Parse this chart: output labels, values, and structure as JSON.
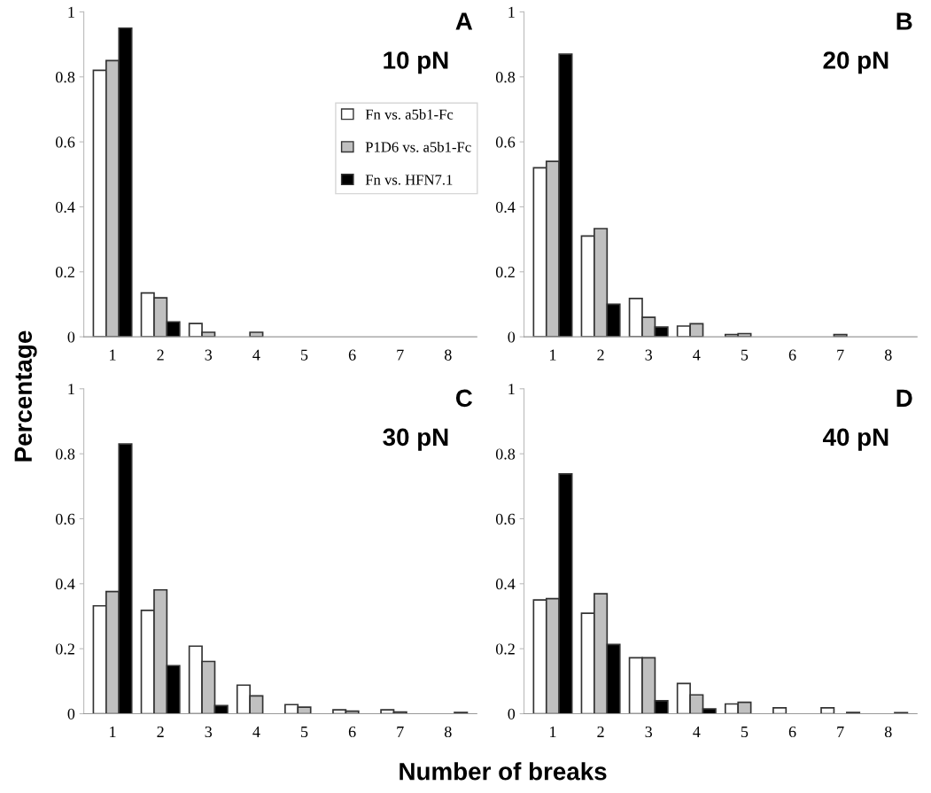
{
  "chart_data": [
    {
      "type": "bar",
      "title": "A",
      "annotations": [
        "10 pN"
      ],
      "ylabel": "Percentage",
      "categories": [
        "1",
        "2",
        "3",
        "4",
        "5",
        "6",
        "7",
        "8"
      ],
      "ylim": [
        0,
        1
      ],
      "yticks": [
        0,
        0.2,
        0.4,
        0.6,
        0.8,
        1
      ],
      "grid": false,
      "legend": "top right",
      "series": [
        {
          "name": "Fn vs. a5b1-Fc",
          "color": "#ffffff",
          "values": [
            0.82,
            0.135,
            0.041,
            0,
            0,
            0,
            0,
            0
          ]
        },
        {
          "name": "P1D6 vs. a5b1-Fc",
          "color": "#c0c0c0",
          "values": [
            0.85,
            0.12,
            0.014,
            0.014,
            0,
            0,
            0,
            0
          ]
        },
        {
          "name": "Fn vs. HFN7.1",
          "color": "#000000",
          "values": [
            0.95,
            0.046,
            0,
            0,
            0,
            0,
            0,
            0
          ]
        }
      ]
    },
    {
      "type": "bar",
      "title": "B",
      "annotations": [
        "20 pN"
      ],
      "categories": [
        "1",
        "2",
        "3",
        "4",
        "5",
        "6",
        "7",
        "8"
      ],
      "ylim": [
        0,
        1
      ],
      "yticks": [
        0,
        0.2,
        0.4,
        0.6,
        0.8,
        1
      ],
      "grid": false,
      "series": [
        {
          "color": "#ffffff",
          "values": [
            0.52,
            0.31,
            0.118,
            0.033,
            0.007,
            0,
            0,
            0
          ]
        },
        {
          "color": "#c0c0c0",
          "values": [
            0.54,
            0.333,
            0.06,
            0.04,
            0.01,
            0,
            0.007,
            0
          ]
        },
        {
          "color": "#000000",
          "values": [
            0.87,
            0.1,
            0.03,
            0,
            0,
            0,
            0,
            0
          ]
        }
      ]
    },
    {
      "type": "bar",
      "title": "C",
      "annotations": [
        "30 pN"
      ],
      "categories": [
        "1",
        "2",
        "3",
        "4",
        "5",
        "6",
        "7",
        "8"
      ],
      "ylim": [
        0,
        1
      ],
      "yticks": [
        0,
        0.2,
        0.4,
        0.6,
        0.8,
        1
      ],
      "grid": false,
      "series": [
        {
          "color": "#ffffff",
          "values": [
            0.332,
            0.318,
            0.208,
            0.088,
            0.028,
            0.012,
            0.012,
            0
          ]
        },
        {
          "color": "#c0c0c0",
          "values": [
            0.376,
            0.381,
            0.161,
            0.055,
            0.02,
            0.008,
            0.005,
            0
          ]
        },
        {
          "color": "#000000",
          "values": [
            0.83,
            0.148,
            0.025,
            0,
            0,
            0,
            0,
            0.004
          ]
        }
      ]
    },
    {
      "type": "bar",
      "title": "D",
      "annotations": [
        "40 pN"
      ],
      "xlabel": "Number of breaks",
      "categories": [
        "1",
        "2",
        "3",
        "4",
        "5",
        "6",
        "7",
        "8"
      ],
      "ylim": [
        0,
        1
      ],
      "yticks": [
        0,
        0.2,
        0.4,
        0.6,
        0.8,
        1
      ],
      "grid": false,
      "series": [
        {
          "color": "#ffffff",
          "values": [
            0.35,
            0.309,
            0.172,
            0.093,
            0.03,
            0.018,
            0.018,
            0
          ]
        },
        {
          "color": "#c0c0c0",
          "values": [
            0.354,
            0.369,
            0.172,
            0.058,
            0.035,
            0,
            0,
            0
          ]
        },
        {
          "color": "#000000",
          "values": [
            0.738,
            0.213,
            0.04,
            0.015,
            0,
            0,
            0.004,
            0.003
          ]
        }
      ]
    }
  ]
}
